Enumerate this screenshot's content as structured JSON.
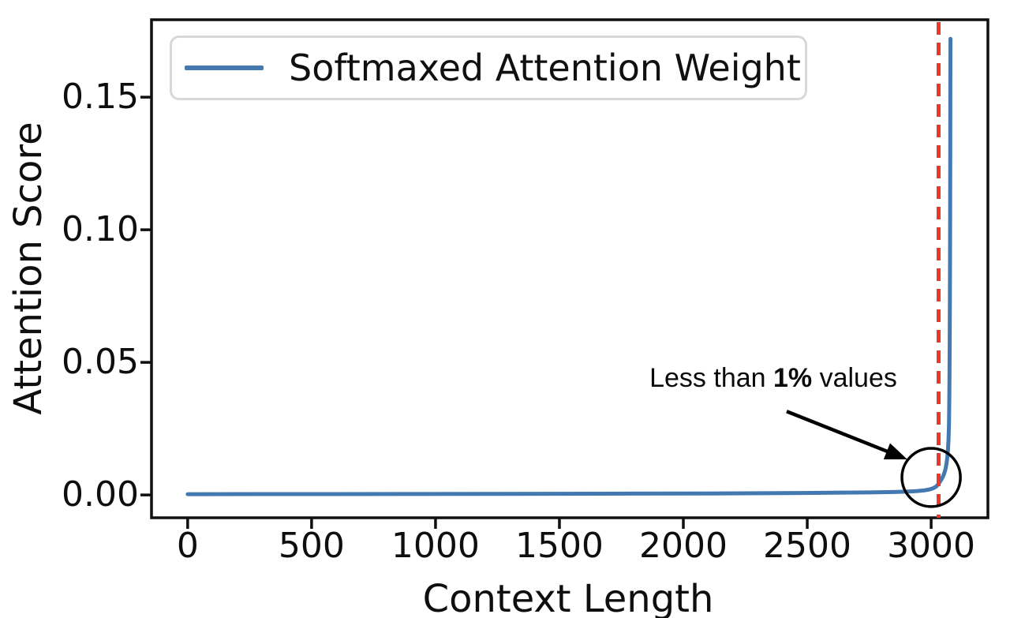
{
  "chart_data": {
    "type": "line",
    "xlabel": "Context Length",
    "ylabel": "Attention Score",
    "xlim": [
      -146,
      3229
    ],
    "ylim": [
      -0.0086,
      0.1792
    ],
    "grid": false,
    "x_ticks": [
      0,
      500,
      1000,
      1500,
      2000,
      2500,
      3000
    ],
    "x_tick_labels": [
      "0",
      "500",
      "1000",
      "1500",
      "2000",
      "2500",
      "3000"
    ],
    "y_ticks": [
      0.0,
      0.05,
      0.1,
      0.15
    ],
    "y_tick_labels": [
      "0.00",
      "0.05",
      "0.10",
      "0.15"
    ],
    "colors": {
      "series": "#4478b1",
      "vline": "#e8382c",
      "axes": "#0f0f0f",
      "annotation": "#000000"
    },
    "legend": {
      "position": "upper left",
      "entries": [
        {
          "label": "Softmaxed Attention Weight",
          "color": "#4478b1"
        }
      ]
    },
    "series": [
      {
        "name": "Softmaxed Attention Weight",
        "color": "#4478b1",
        "points": [
          [
            0,
            0.0003
          ],
          [
            300,
            0.00032
          ],
          [
            600,
            0.00034
          ],
          [
            900,
            0.00037
          ],
          [
            1200,
            0.0004
          ],
          [
            1500,
            0.00044
          ],
          [
            1800,
            0.0005
          ],
          [
            2100,
            0.00058
          ],
          [
            2400,
            0.0007
          ],
          [
            2600,
            0.00082
          ],
          [
            2750,
            0.00095
          ],
          [
            2850,
            0.0011
          ],
          [
            2900,
            0.00125
          ],
          [
            2940,
            0.00145
          ],
          [
            2970,
            0.0017
          ],
          [
            2995,
            0.0021
          ],
          [
            3010,
            0.0026
          ],
          [
            3022,
            0.0033
          ],
          [
            3032,
            0.0045
          ],
          [
            3040,
            0.0056
          ],
          [
            3047,
            0.0068
          ],
          [
            3053,
            0.0082
          ],
          [
            3058,
            0.0098
          ],
          [
            3062,
            0.0118
          ],
          [
            3065,
            0.014
          ],
          [
            3068,
            0.017
          ],
          [
            3070,
            0.021
          ],
          [
            3072,
            0.027
          ],
          [
            3073,
            0.034
          ],
          [
            3074,
            0.044
          ],
          [
            3075,
            0.058
          ],
          [
            3076,
            0.08
          ],
          [
            3076.5,
            0.1
          ],
          [
            3077,
            0.13
          ],
          [
            3077.5,
            0.155
          ],
          [
            3078,
            0.172
          ]
        ]
      }
    ],
    "vline": {
      "x": 3030,
      "style": "dashed",
      "color": "#e8382c"
    },
    "annotations": {
      "label": {
        "prefix": "Less than ",
        "bold": "1%",
        "suffix": " values",
        "anchor": [
          2363,
          0.0429
        ]
      },
      "arrow": {
        "from": [
          2417,
          0.0315
        ],
        "to": [
          2904,
          0.0134
        ]
      },
      "circle": {
        "cx": 3000,
        "cy": 0.0066,
        "rx": 118,
        "ry": 0.011
      }
    }
  }
}
